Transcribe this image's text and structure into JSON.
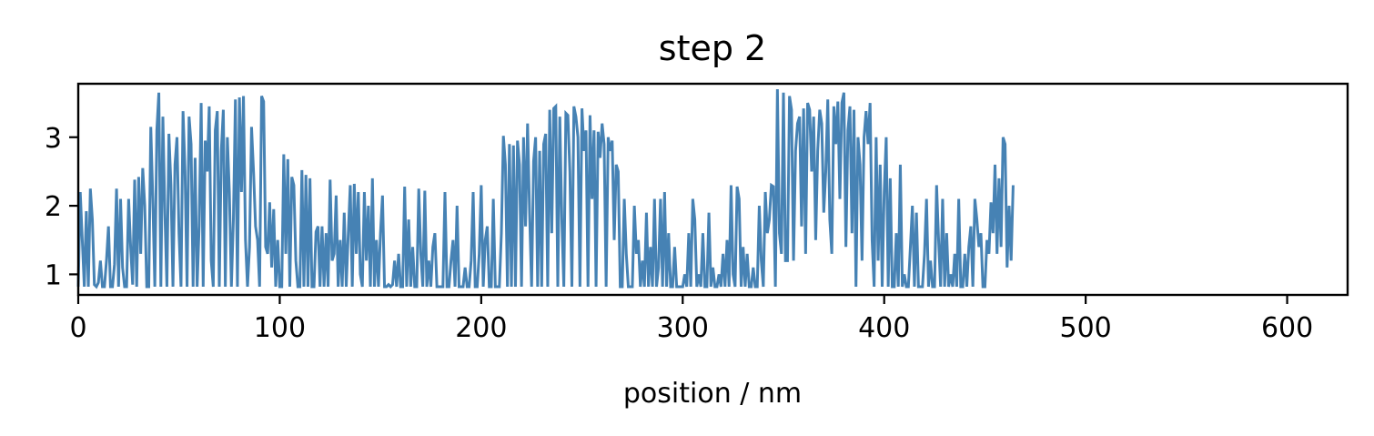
{
  "chart_data": {
    "type": "line",
    "title": "step 2",
    "xlabel": "position / nm",
    "ylabel": "",
    "xlim": [
      0,
      630
    ],
    "ylim": [
      0.7,
      3.78
    ],
    "x_ticks": [
      0,
      100,
      200,
      300,
      400,
      500,
      600
    ],
    "x_tick_labels": [
      "0",
      "100",
      "200",
      "300",
      "400",
      "500",
      "600"
    ],
    "y_ticks": [
      1,
      2,
      3
    ],
    "y_tick_labels": [
      "1",
      "2",
      "3"
    ],
    "grid": false,
    "legend": "none",
    "series": [
      {
        "color": "#4682b4",
        "x_step": 1,
        "values": [
          0.82,
          2.2,
          1.5,
          0.82,
          1.92,
          0.82,
          2.25,
          1.8,
          0.85,
          0.82,
          0.88,
          1.2,
          0.82,
          0.82,
          1.2,
          1.7,
          0.82,
          0.82,
          1.15,
          2.25,
          0.82,
          2.1,
          1.1,
          0.82,
          0.82,
          2.1,
          1.4,
          0.85,
          2.38,
          0.82,
          2.42,
          1.3,
          2.55,
          2.0,
          0.82,
          0.82,
          3.15,
          2.1,
          0.82,
          3.1,
          3.65,
          0.82,
          3.3,
          1.9,
          0.82,
          3.05,
          2.3,
          0.82,
          2.6,
          3.0,
          1.6,
          0.82,
          3.38,
          2.5,
          0.82,
          3.3,
          2.9,
          0.82,
          2.7,
          0.82,
          1.7,
          3.5,
          0.82,
          2.95,
          2.5,
          3.45,
          1.2,
          0.82,
          3.1,
          3.38,
          0.82,
          2.8,
          3.4,
          0.82,
          3.0,
          2.2,
          0.82,
          1.8,
          3.55,
          0.82,
          3.58,
          2.2,
          3.6,
          1.5,
          0.82,
          1.4,
          3.15,
          2.5,
          1.7,
          1.5,
          0.82,
          3.6,
          3.52,
          1.4,
          1.3,
          2.05,
          1.1,
          1.95,
          0.82,
          1.5,
          0.82,
          0.82,
          2.75,
          1.3,
          2.68,
          0.82,
          2.42,
          2.3,
          1.2,
          0.82,
          0.82,
          2.52,
          0.82,
          2.45,
          0.82,
          2.4,
          0.82,
          0.82,
          1.62,
          1.7,
          0.82,
          1.7,
          0.82,
          1.6,
          0.82,
          2.38,
          1.2,
          1.3,
          2.15,
          0.82,
          1.5,
          0.82,
          1.9,
          0.82,
          1.58,
          2.3,
          0.82,
          2.32,
          1.3,
          2.2,
          1.0,
          0.82,
          2.2,
          1.2,
          2.0,
          0.82,
          2.4,
          0.82,
          1.5,
          0.82,
          1.6,
          2.15,
          0.82,
          0.82,
          0.85,
          0.82,
          0.85,
          1.2,
          0.82,
          1.3,
          0.82,
          0.82,
          2.28,
          0.82,
          1.8,
          0.82,
          1.4,
          0.82,
          0.82,
          2.25,
          1.3,
          0.82,
          2.22,
          0.82,
          1.2,
          0.82,
          1.4,
          1.6,
          0.82,
          0.82,
          0.82,
          0.82,
          2.2,
          0.82,
          0.82,
          1.2,
          1.5,
          0.82,
          2.0,
          0.82,
          0.82,
          0.82,
          1.1,
          0.82,
          0.82,
          1.2,
          2.2,
          0.82,
          0.82,
          1.3,
          2.3,
          0.82,
          1.5,
          1.7,
          0.82,
          0.82,
          2.1,
          0.82,
          0.82,
          0.82,
          1.6,
          3.02,
          2.6,
          0.82,
          2.9,
          0.82,
          2.88,
          0.82,
          2.95,
          2.6,
          0.82,
          3.0,
          1.7,
          3.2,
          1.9,
          0.82,
          2.65,
          3.0,
          0.82,
          2.8,
          0.82,
          2.9,
          3.05,
          0.82,
          3.4,
          1.6,
          3.42,
          3.45,
          0.82,
          3.3,
          1.8,
          0.82,
          3.35,
          3.32,
          2.5,
          0.82,
          3.45,
          3.3,
          3.0,
          0.82,
          3.42,
          2.8,
          3.1,
          0.82,
          3.32,
          2.1,
          3.1,
          0.82,
          3.08,
          2.7,
          3.2,
          2.9,
          0.82,
          3.0,
          2.8,
          2.95,
          1.5,
          2.6,
          2.5,
          0.82,
          0.82,
          2.1,
          1.3,
          0.82,
          0.82,
          0.82,
          2.0,
          1.3,
          1.5,
          0.82,
          1.2,
          0.82,
          1.9,
          0.82,
          1.4,
          0.82,
          2.1,
          0.82,
          1.1,
          2.1,
          0.82,
          2.2,
          0.82,
          1.6,
          0.82,
          0.82,
          1.4,
          0.82,
          0.82,
          0.82,
          0.82,
          1.0,
          0.82,
          1.6,
          0.82,
          2.1,
          1.8,
          0.82,
          1.0,
          0.82,
          1.6,
          0.82,
          0.82,
          1.9,
          0.82,
          1.1,
          0.82,
          0.82,
          1.0,
          0.82,
          1.3,
          0.82,
          1.5,
          0.82,
          2.3,
          1.0,
          0.82,
          2.28,
          2.1,
          0.82,
          1.4,
          0.82,
          1.3,
          0.82,
          0.82,
          1.1,
          0.82,
          0.82,
          2.0,
          1.2,
          0.82,
          2.2,
          1.6,
          1.8,
          2.3,
          2.28,
          0.82,
          3.7,
          1.6,
          1.3,
          3.65,
          1.2,
          1.2,
          3.6,
          3.4,
          1.2,
          2.8,
          3.2,
          3.3,
          1.7,
          3.42,
          1.3,
          3.5,
          3.4,
          2.5,
          3.3,
          1.5,
          2.8,
          3.4,
          3.2,
          1.9,
          2.5,
          3.55,
          1.8,
          1.3,
          3.45,
          2.9,
          3.52,
          2.1,
          3.5,
          3.65,
          1.4,
          3.1,
          3.45,
          1.6,
          3.4,
          0.82,
          3.0,
          2.6,
          1.2,
          3.0,
          3.38,
          2.9,
          3.5,
          1.5,
          0.82,
          3.0,
          1.2,
          2.6,
          0.82,
          2.2,
          3.0,
          0.82,
          2.4,
          0.82,
          0.82,
          1.6,
          0.82,
          2.6,
          0.82,
          1.0,
          0.82,
          0.82,
          1.4,
          2.0,
          0.82,
          1.9,
          0.82,
          0.82,
          0.82,
          1.3,
          2.1,
          0.82,
          1.2,
          0.82,
          0.82,
          2.3,
          1.5,
          0.82,
          2.1,
          0.82,
          1.6,
          0.82,
          1.0,
          0.82,
          1.3,
          0.82,
          2.1,
          0.82,
          0.82,
          1.3,
          0.82,
          1.4,
          1.7,
          0.82,
          2.1,
          1.8,
          1.4,
          1.6,
          0.82,
          0.82,
          1.5,
          1.3,
          2.05,
          1.6,
          2.6,
          1.3,
          2.4,
          1.4,
          3.0,
          2.9,
          1.1,
          2.0,
          1.2,
          2.3
        ]
      }
    ]
  }
}
